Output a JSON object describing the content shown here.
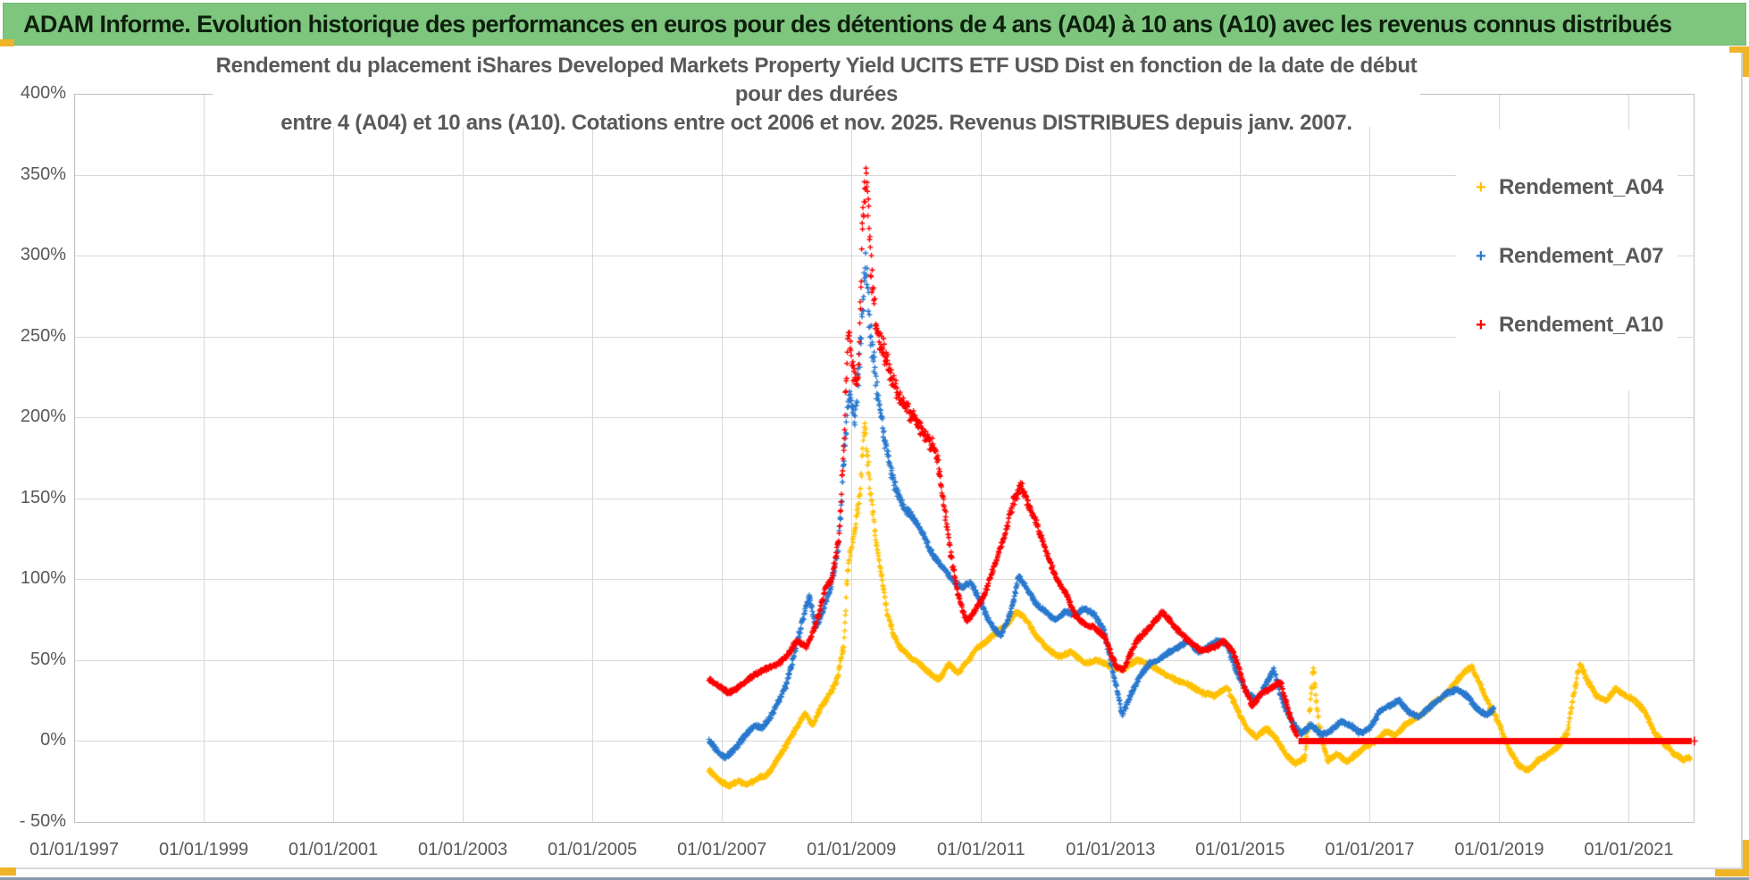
{
  "header": {
    "title": "ADAM Informe. Evolution historique des performances en euros pour des détentions de 4 ans (A04) à 10 ans (A10) avec les revenus connus distribués"
  },
  "chart_data": {
    "type": "scatter",
    "title_line1": "Rendement du placement iShares Developed Markets Property Yield UCITS ETF USD Dist en fonction de la date de début pour des durées",
    "title_line2": "entre 4 (A04) et 10 ans (A10). Cotations entre oct 2006 et nov. 2025. Revenus DISTRIBUES depuis janv. 2007.",
    "x_axis": {
      "min_year": 1997,
      "max_year": 2022,
      "tick_years": [
        1997,
        1999,
        2001,
        2003,
        2005,
        2007,
        2009,
        2011,
        2013,
        2015,
        2017,
        2019,
        2021
      ],
      "tick_labels": [
        "01/01/1997",
        "01/01/1999",
        "01/01/2001",
        "01/01/2003",
        "01/01/2005",
        "01/01/2007",
        "01/01/2009",
        "01/01/2011",
        "01/01/2013",
        "01/01/2015",
        "01/01/2017",
        "01/01/2019",
        "01/01/2021"
      ]
    },
    "y_axis": {
      "min": -50,
      "max": 400,
      "unit": "%",
      "tick_values": [
        400,
        350,
        300,
        250,
        200,
        150,
        100,
        50,
        0,
        -50
      ],
      "tick_labels": [
        "400%",
        "350%",
        "300%",
        "250%",
        "200%",
        "150%",
        "100%",
        "50%",
        "0%",
        "- 50%"
      ]
    },
    "grid": true,
    "legend": {
      "position": "right-inside",
      "entries": [
        {
          "label": "Rendement_A04",
          "color": "#FFC000"
        },
        {
          "label": "Rendement_A07",
          "color": "#2878CE"
        },
        {
          "label": "Rendement_A10",
          "color": "#FE0000"
        }
      ]
    },
    "series": [
      {
        "name": "Rendement_A04",
        "color": "#FFC000",
        "marker": "+",
        "points": [
          [
            2006.8,
            -18
          ],
          [
            2006.95,
            -24
          ],
          [
            2007.1,
            -28
          ],
          [
            2007.25,
            -25
          ],
          [
            2007.4,
            -27
          ],
          [
            2007.55,
            -23
          ],
          [
            2007.7,
            -21
          ],
          [
            2007.85,
            -12
          ],
          [
            2008.0,
            -2
          ],
          [
            2008.15,
            8
          ],
          [
            2008.28,
            17
          ],
          [
            2008.4,
            10
          ],
          [
            2008.55,
            22
          ],
          [
            2008.68,
            30
          ],
          [
            2008.78,
            38
          ],
          [
            2008.88,
            60
          ],
          [
            2008.95,
            110
          ],
          [
            2009.05,
            130
          ],
          [
            2009.12,
            150
          ],
          [
            2009.2,
            195
          ],
          [
            2009.28,
            160
          ],
          [
            2009.36,
            128
          ],
          [
            2009.45,
            105
          ],
          [
            2009.55,
            80
          ],
          [
            2009.65,
            65
          ],
          [
            2009.75,
            58
          ],
          [
            2009.9,
            52
          ],
          [
            2010.05,
            48
          ],
          [
            2010.2,
            42
          ],
          [
            2010.35,
            38
          ],
          [
            2010.5,
            48
          ],
          [
            2010.65,
            42
          ],
          [
            2010.8,
            50
          ],
          [
            2010.95,
            58
          ],
          [
            2011.1,
            62
          ],
          [
            2011.25,
            68
          ],
          [
            2011.4,
            72
          ],
          [
            2011.55,
            80
          ],
          [
            2011.7,
            75
          ],
          [
            2011.85,
            65
          ],
          [
            2012.0,
            58
          ],
          [
            2012.2,
            52
          ],
          [
            2012.4,
            55
          ],
          [
            2012.6,
            48
          ],
          [
            2012.8,
            50
          ],
          [
            2013.0,
            46
          ],
          [
            2013.2,
            44
          ],
          [
            2013.4,
            50
          ],
          [
            2013.6,
            47
          ],
          [
            2013.8,
            42
          ],
          [
            2014.0,
            38
          ],
          [
            2014.2,
            35
          ],
          [
            2014.4,
            30
          ],
          [
            2014.6,
            28
          ],
          [
            2014.8,
            33
          ],
          [
            2014.95,
            20
          ],
          [
            2015.1,
            8
          ],
          [
            2015.25,
            2
          ],
          [
            2015.4,
            8
          ],
          [
            2015.55,
            2
          ],
          [
            2015.7,
            -8
          ],
          [
            2015.85,
            -14
          ],
          [
            2016.0,
            -10
          ],
          [
            2016.08,
            20
          ],
          [
            2016.13,
            45
          ],
          [
            2016.22,
            8
          ],
          [
            2016.35,
            -12
          ],
          [
            2016.5,
            -8
          ],
          [
            2016.65,
            -13
          ],
          [
            2016.8,
            -8
          ],
          [
            2016.95,
            -3
          ],
          [
            2017.1,
            0
          ],
          [
            2017.25,
            6
          ],
          [
            2017.4,
            3
          ],
          [
            2017.55,
            10
          ],
          [
            2017.7,
            14
          ],
          [
            2017.85,
            18
          ],
          [
            2018.0,
            24
          ],
          [
            2018.15,
            28
          ],
          [
            2018.3,
            35
          ],
          [
            2018.45,
            42
          ],
          [
            2018.58,
            46
          ],
          [
            2018.7,
            35
          ],
          [
            2018.85,
            22
          ],
          [
            2019.0,
            10
          ],
          [
            2019.15,
            -5
          ],
          [
            2019.3,
            -15
          ],
          [
            2019.45,
            -18
          ],
          [
            2019.6,
            -12
          ],
          [
            2019.75,
            -8
          ],
          [
            2019.9,
            -4
          ],
          [
            2020.05,
            5
          ],
          [
            2020.18,
            35
          ],
          [
            2020.25,
            48
          ],
          [
            2020.35,
            38
          ],
          [
            2020.5,
            28
          ],
          [
            2020.65,
            25
          ],
          [
            2020.8,
            32
          ],
          [
            2020.95,
            28
          ],
          [
            2021.1,
            25
          ],
          [
            2021.25,
            18
          ],
          [
            2021.4,
            5
          ],
          [
            2021.55,
            -2
          ],
          [
            2021.7,
            -8
          ],
          [
            2021.85,
            -12
          ],
          [
            2021.95,
            -10
          ]
        ]
      },
      {
        "name": "Rendement_A07",
        "color": "#2878CE",
        "marker": "+",
        "points": [
          [
            2006.8,
            0
          ],
          [
            2006.92,
            -6
          ],
          [
            2007.05,
            -10
          ],
          [
            2007.2,
            -5
          ],
          [
            2007.35,
            3
          ],
          [
            2007.5,
            10
          ],
          [
            2007.62,
            8
          ],
          [
            2007.75,
            15
          ],
          [
            2007.88,
            25
          ],
          [
            2008.0,
            35
          ],
          [
            2008.12,
            55
          ],
          [
            2008.25,
            75
          ],
          [
            2008.35,
            90
          ],
          [
            2008.45,
            70
          ],
          [
            2008.55,
            80
          ],
          [
            2008.68,
            95
          ],
          [
            2008.8,
            120
          ],
          [
            2008.9,
            185
          ],
          [
            2008.97,
            215
          ],
          [
            2009.05,
            195
          ],
          [
            2009.15,
            255
          ],
          [
            2009.22,
            295
          ],
          [
            2009.3,
            250
          ],
          [
            2009.4,
            215
          ],
          [
            2009.52,
            185
          ],
          [
            2009.65,
            160
          ],
          [
            2009.8,
            145
          ],
          [
            2009.95,
            138
          ],
          [
            2010.1,
            128
          ],
          [
            2010.25,
            115
          ],
          [
            2010.4,
            108
          ],
          [
            2010.55,
            100
          ],
          [
            2010.7,
            95
          ],
          [
            2010.85,
            98
          ],
          [
            2011.0,
            85
          ],
          [
            2011.15,
            72
          ],
          [
            2011.3,
            65
          ],
          [
            2011.45,
            78
          ],
          [
            2011.58,
            102
          ],
          [
            2011.7,
            95
          ],
          [
            2011.85,
            85
          ],
          [
            2012.0,
            80
          ],
          [
            2012.15,
            75
          ],
          [
            2012.3,
            80
          ],
          [
            2012.45,
            78
          ],
          [
            2012.6,
            82
          ],
          [
            2012.75,
            78
          ],
          [
            2012.9,
            68
          ],
          [
            2013.05,
            40
          ],
          [
            2013.18,
            16
          ],
          [
            2013.3,
            28
          ],
          [
            2013.45,
            40
          ],
          [
            2013.6,
            48
          ],
          [
            2013.75,
            50
          ],
          [
            2013.9,
            55
          ],
          [
            2014.05,
            58
          ],
          [
            2014.2,
            62
          ],
          [
            2014.35,
            55
          ],
          [
            2014.5,
            58
          ],
          [
            2014.65,
            62
          ],
          [
            2014.8,
            60
          ],
          [
            2014.95,
            42
          ],
          [
            2015.1,
            30
          ],
          [
            2015.25,
            25
          ],
          [
            2015.4,
            35
          ],
          [
            2015.52,
            44
          ],
          [
            2015.65,
            25
          ],
          [
            2015.8,
            12
          ],
          [
            2015.95,
            5
          ],
          [
            2016.1,
            10
          ],
          [
            2016.25,
            4
          ],
          [
            2016.4,
            6
          ],
          [
            2016.55,
            12
          ],
          [
            2016.7,
            10
          ],
          [
            2016.85,
            5
          ],
          [
            2017.0,
            8
          ],
          [
            2017.15,
            18
          ],
          [
            2017.3,
            22
          ],
          [
            2017.45,
            25
          ],
          [
            2017.6,
            18
          ],
          [
            2017.75,
            15
          ],
          [
            2017.9,
            20
          ],
          [
            2018.05,
            25
          ],
          [
            2018.2,
            30
          ],
          [
            2018.35,
            32
          ],
          [
            2018.5,
            28
          ],
          [
            2018.65,
            20
          ],
          [
            2018.8,
            16
          ],
          [
            2018.92,
            20
          ]
        ]
      },
      {
        "name": "Rendement_A10",
        "color": "#FE0000",
        "marker": "+",
        "flat_zero_from": 2015.9,
        "flat_zero_to": 2021.97,
        "points": [
          [
            2006.8,
            38
          ],
          [
            2006.95,
            34
          ],
          [
            2007.1,
            30
          ],
          [
            2007.25,
            33
          ],
          [
            2007.4,
            38
          ],
          [
            2007.55,
            42
          ],
          [
            2007.7,
            45
          ],
          [
            2007.85,
            47
          ],
          [
            2008.0,
            52
          ],
          [
            2008.15,
            62
          ],
          [
            2008.3,
            58
          ],
          [
            2008.45,
            72
          ],
          [
            2008.6,
            95
          ],
          [
            2008.7,
            100
          ],
          [
            2008.8,
            125
          ],
          [
            2008.88,
            180
          ],
          [
            2008.95,
            255
          ],
          [
            2009.02,
            230
          ],
          [
            2009.1,
            218
          ],
          [
            2009.17,
            320
          ],
          [
            2009.23,
            352
          ],
          [
            2009.3,
            295
          ],
          [
            2009.4,
            252
          ],
          [
            2009.55,
            235
          ],
          [
            2009.7,
            215
          ],
          [
            2009.85,
            205
          ],
          [
            2010.0,
            198
          ],
          [
            2010.15,
            188
          ],
          [
            2010.3,
            180
          ],
          [
            2010.45,
            140
          ],
          [
            2010.55,
            110
          ],
          [
            2010.65,
            90
          ],
          [
            2010.78,
            74
          ],
          [
            2010.9,
            80
          ],
          [
            2011.05,
            90
          ],
          [
            2011.2,
            108
          ],
          [
            2011.35,
            125
          ],
          [
            2011.5,
            148
          ],
          [
            2011.62,
            158
          ],
          [
            2011.72,
            148
          ],
          [
            2011.85,
            135
          ],
          [
            2012.0,
            118
          ],
          [
            2012.15,
            102
          ],
          [
            2012.3,
            92
          ],
          [
            2012.45,
            78
          ],
          [
            2012.6,
            72
          ],
          [
            2012.75,
            70
          ],
          [
            2012.9,
            65
          ],
          [
            2013.08,
            46
          ],
          [
            2013.2,
            44
          ],
          [
            2013.4,
            62
          ],
          [
            2013.6,
            70
          ],
          [
            2013.8,
            80
          ],
          [
            2014.0,
            70
          ],
          [
            2014.2,
            62
          ],
          [
            2014.4,
            56
          ],
          [
            2014.6,
            58
          ],
          [
            2014.75,
            62
          ],
          [
            2014.9,
            55
          ],
          [
            2015.05,
            35
          ],
          [
            2015.18,
            22
          ],
          [
            2015.35,
            30
          ],
          [
            2015.5,
            33
          ],
          [
            2015.62,
            37
          ],
          [
            2015.72,
            22
          ],
          [
            2015.82,
            8
          ],
          [
            2015.88,
            3
          ]
        ]
      }
    ]
  },
  "frame": {
    "accent_color": "#F0B429",
    "gridline_color": "#d9d9d9",
    "text_color": "#595959"
  }
}
